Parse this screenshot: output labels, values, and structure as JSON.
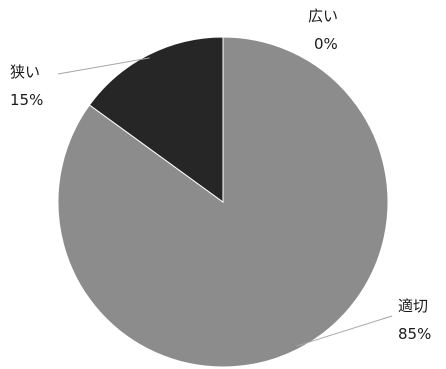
{
  "chart_data": {
    "type": "pie",
    "title": "",
    "slices": [
      {
        "label": "広い",
        "value": 0,
        "value_label": "0%",
        "color": "#d9d9d9"
      },
      {
        "label": "適切",
        "value": 85,
        "value_label": "85%",
        "color": "#8c8c8c"
      },
      {
        "label": "狭い",
        "value": 15,
        "value_label": "15%",
        "color": "#262626"
      }
    ],
    "start_angle_deg": 0,
    "direction": "clockwise",
    "legend": "none",
    "data_labels": "outside-with-leader-lines"
  }
}
